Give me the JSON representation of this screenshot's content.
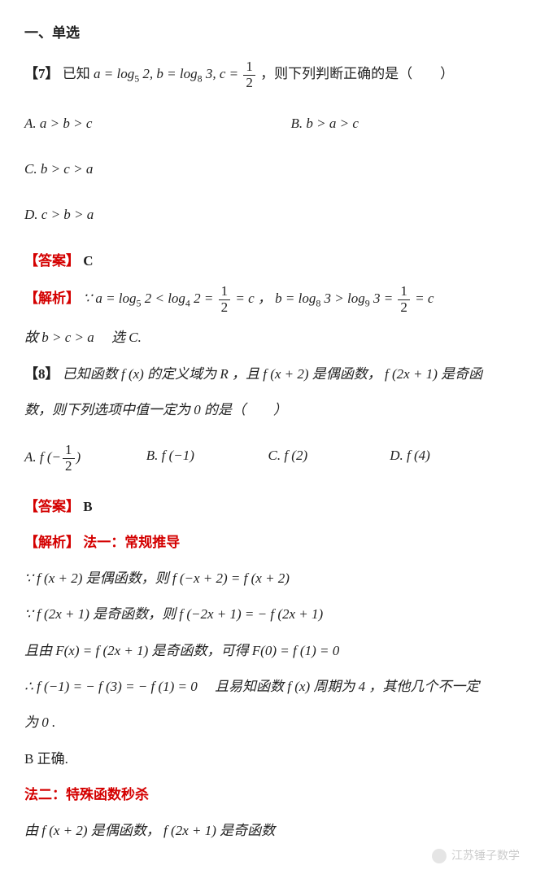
{
  "header": {
    "section_title": "一、单选"
  },
  "q7": {
    "number": "【7】",
    "stem_pre": "已知 ",
    "stem_math": "a = log<sub>5</sub> 2, b = log<sub>8</sub> 3, c = ",
    "stem_frac_num": "1",
    "stem_frac_den": "2",
    "stem_post": " ，则下列判断正确的是（　　）",
    "options": {
      "A": "A.  a > b > c",
      "B": "B.  b > a > c",
      "C": "C.  b > c > a",
      "D": "D. c > b > a"
    },
    "answer_label": "【答案】",
    "answer_value": "C",
    "analysis_label": "【解析】",
    "step1_pre": "∵ a = log<sub>5</sub> 2 < log<sub>4</sub> 2 = ",
    "f1n": "1",
    "f1d": "2",
    "step1_mid": " = c ， b = log<sub>8</sub> 3 > log<sub>9</sub> 3 = ",
    "f2n": "1",
    "f2d": "2",
    "step1_post": " = c",
    "step2": "故 b > c > a 　选 C."
  },
  "q8": {
    "number": "【8】",
    "stem_l1": "已知函数 f (x) 的定义域为 R ，且 f (x + 2) 是偶函数， f (2x + 1) 是奇函",
    "stem_l2": "数，则下列选项中值一定为 0 的是（　　）",
    "options": {
      "A_pre": "A. f (−",
      "A_num": "1",
      "A_den": "2",
      "A_post": ")",
      "B": "B. f (−1)",
      "C": "C. f (2)",
      "D": "D. f (4)"
    },
    "answer_label": "【答案】",
    "answer_value": "B",
    "analysis_label": "【解析】",
    "method1_title": "法一：常规推导",
    "s1": "∵ f (x + 2) 是偶函数，则 f (−x + 2) = f (x + 2)",
    "s2": "∵ f (2x + 1) 是奇函数，则 f (−2x + 1) = − f (2x + 1)",
    "s3": "且由 F(x) = f (2x + 1) 是奇函数，可得 F(0) = f (1) = 0",
    "s4": "∴ f (−1) = − f (3) = − f (1) = 0 　且易知函数 f (x) 周期为 4 ，其他几个不一定",
    "s5": "为 0 .",
    "s6": "B 正确.",
    "method2_title": "法二：特殊函数秒杀",
    "m2_s1": "由 f (x + 2) 是偶函数， f (2x + 1) 是奇函数"
  },
  "watermark": "江苏锤子数学"
}
